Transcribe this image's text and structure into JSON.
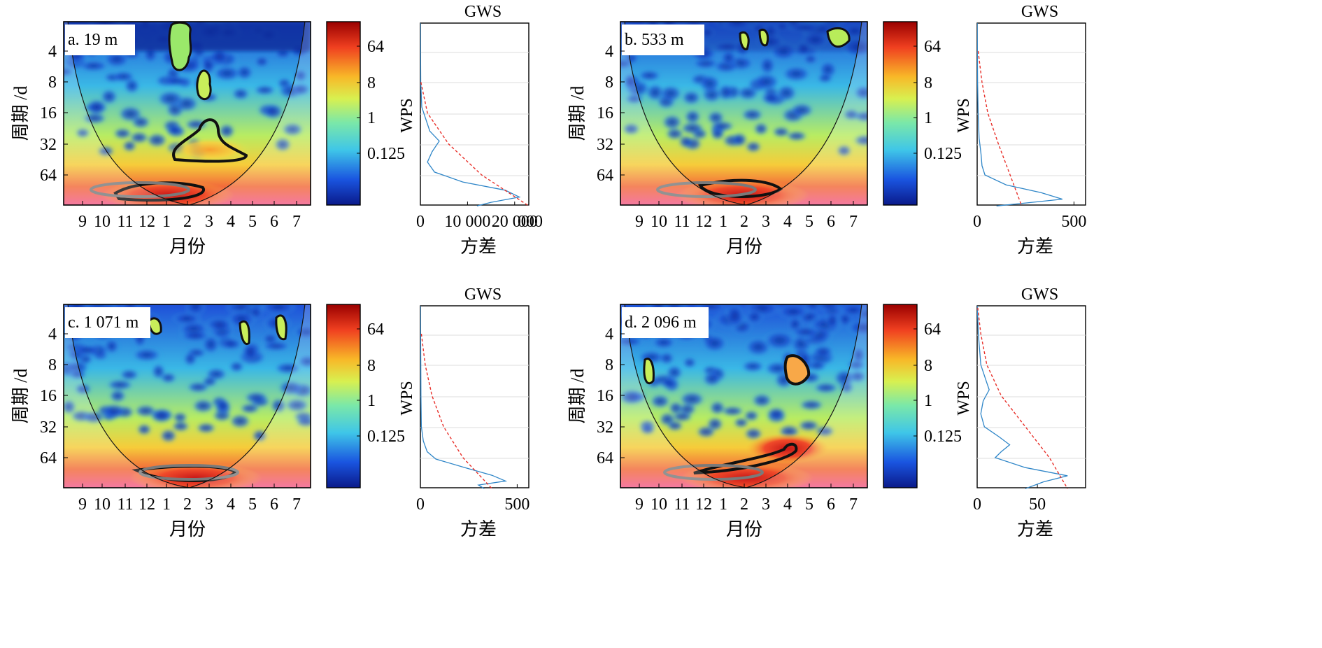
{
  "figure": {
    "y_axis_label": "周期 /d",
    "x_axis_label": "月份",
    "gws_title": "GWS",
    "wps_label": "WPS",
    "variance_label": "方差",
    "colorbar_ticks": [
      "64",
      "8",
      "1",
      "0.125"
    ],
    "colormap": [
      "#0a1a8a",
      "#1a55e0",
      "#3fc6e8",
      "#7be8a8",
      "#d8f050",
      "#f8b828",
      "#f04020",
      "#9a0000"
    ]
  },
  "chart_data": [
    {
      "type": "heatmap",
      "panel_label": "a. 19 m",
      "xlabel": "月份",
      "ylabel": "周期 /d",
      "x_ticks": [
        "9",
        "10",
        "11",
        "12",
        "1",
        "2",
        "3",
        "4",
        "5",
        "6",
        "7"
      ],
      "y_ticks": [
        "4",
        "8",
        "16",
        "32",
        "64"
      ],
      "y_scale": "log2",
      "global_spectrum": {
        "title": "GWS",
        "ylabel": "WPS",
        "xlabel": "方差",
        "x_ticks": [
          "0",
          "10 000",
          "20 000"
        ],
        "x_tick_values": [
          0,
          10000,
          20000
        ],
        "x_display_tail": "000",
        "xlim": [
          0,
          23000
        ],
        "wps_period": [
          2,
          8,
          14,
          24,
          30,
          38,
          48,
          60,
          75,
          90,
          105,
          118,
          128
        ],
        "wps_variance": [
          0,
          80,
          300,
          2000,
          4000,
          2500,
          1500,
          3000,
          9000,
          18000,
          21000,
          15000,
          12000
        ],
        "significance_period": [
          8,
          16,
          32,
          64,
          128
        ],
        "significance_variance": [
          100,
          1500,
          6000,
          13000,
          23000
        ]
      }
    },
    {
      "type": "heatmap",
      "panel_label": "b. 533 m",
      "xlabel": "月份",
      "ylabel": "周期 /d",
      "x_ticks": [
        "9",
        "10",
        "11",
        "12",
        "1",
        "2",
        "3",
        "4",
        "5",
        "6",
        "7"
      ],
      "y_ticks": [
        "4",
        "8",
        "16",
        "32",
        "64"
      ],
      "y_scale": "log2",
      "global_spectrum": {
        "title": "GWS",
        "ylabel": "WPS",
        "xlabel": "方差",
        "x_ticks": [
          "0",
          "500"
        ],
        "x_tick_values": [
          0,
          500
        ],
        "xlim": [
          0,
          560
        ],
        "wps_period": [
          2,
          8,
          16,
          28,
          40,
          52,
          64,
          80,
          95,
          110,
          120,
          128
        ],
        "wps_variance": [
          0,
          2,
          5,
          10,
          20,
          25,
          40,
          150,
          330,
          440,
          250,
          100
        ],
        "significance_period": [
          4,
          8,
          16,
          32,
          64,
          128
        ],
        "significance_variance": [
          5,
          25,
          55,
          110,
          170,
          230
        ]
      }
    },
    {
      "type": "heatmap",
      "panel_label": "c. 1 071 m",
      "xlabel": "月份",
      "ylabel": "周期 /d",
      "x_ticks": [
        "9",
        "10",
        "11",
        "12",
        "1",
        "2",
        "3",
        "4",
        "5",
        "6",
        "7"
      ],
      "y_ticks": [
        "4",
        "8",
        "16",
        "32",
        "64"
      ],
      "y_scale": "log2",
      "global_spectrum": {
        "title": "GWS",
        "ylabel": "WPS",
        "xlabel": "方差",
        "x_ticks": [
          "0",
          "500"
        ],
        "x_tick_values": [
          0,
          500
        ],
        "xlim": [
          0,
          560
        ],
        "wps_period": [
          2,
          8,
          16,
          32,
          44,
          56,
          66,
          80,
          95,
          108,
          118,
          128
        ],
        "wps_variance": [
          0,
          2,
          3,
          5,
          15,
          35,
          80,
          230,
          370,
          440,
          300,
          330
        ],
        "significance_period": [
          4,
          8,
          16,
          32,
          64,
          128
        ],
        "significance_variance": [
          5,
          25,
          60,
          120,
          220,
          370
        ]
      }
    },
    {
      "type": "heatmap",
      "panel_label": "d. 2 096 m",
      "xlabel": "月份",
      "ylabel": "周期 /d",
      "x_ticks": [
        "9",
        "10",
        "11",
        "12",
        "1",
        "2",
        "3",
        "4",
        "5",
        "6",
        "7"
      ],
      "y_ticks": [
        "4",
        "8",
        "16",
        "32",
        "64"
      ],
      "y_scale": "log2",
      "global_spectrum": {
        "title": "GWS",
        "ylabel": "WPS",
        "xlabel": "方差",
        "x_ticks": [
          "0",
          "50"
        ],
        "x_tick_values": [
          0,
          50
        ],
        "xlim": [
          0,
          90
        ],
        "wps_period": [
          2,
          4,
          8,
          12,
          14,
          18,
          24,
          32,
          40,
          48,
          56,
          64,
          80,
          96,
          110,
          128
        ],
        "wps_variance": [
          0,
          1,
          3,
          8,
          10,
          5,
          3,
          6,
          18,
          27,
          20,
          15,
          40,
          75,
          55,
          40
        ],
        "significance_period": [
          2,
          4,
          8,
          16,
          32,
          64,
          128
        ],
        "significance_variance": [
          0,
          3,
          8,
          20,
          40,
          60,
          75
        ]
      }
    }
  ]
}
